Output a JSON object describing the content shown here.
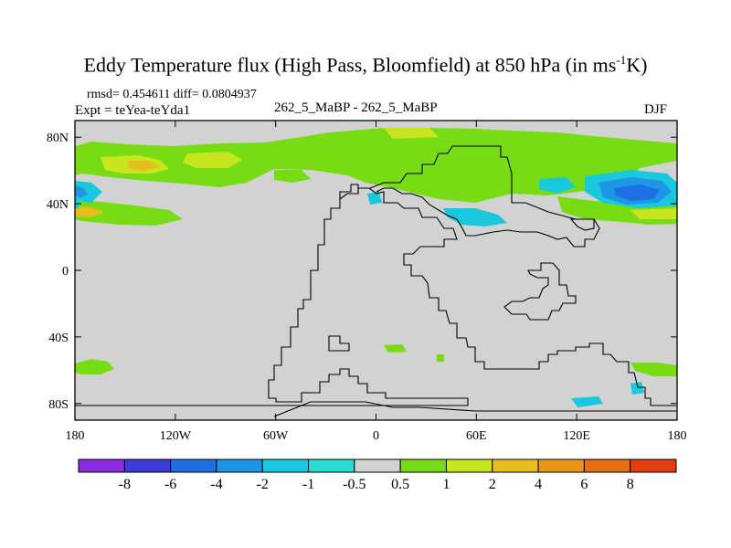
{
  "chart_data": {
    "type": "heatmap",
    "title_main": "Eddy Temperature flux (High Pass, Bloomfield) at 850 hPa (in ms",
    "title_sup": "-1",
    "title_end": "K)",
    "rmsd_line": "rmsd= 0.454611 diff= 0.0804937",
    "expt_line": "Expt = teYea-teYda1",
    "center_label": "262_5_MaBP - 262_5_MaBP",
    "season": "DJF",
    "x_range": [
      -180,
      180
    ],
    "y_range": [
      -90,
      90
    ],
    "x_ticks": [
      {
        "value": -180,
        "label": "180"
      },
      {
        "value": -120,
        "label": "120W"
      },
      {
        "value": -60,
        "label": "60W"
      },
      {
        "value": 0,
        "label": "0"
      },
      {
        "value": 60,
        "label": "60E"
      },
      {
        "value": 120,
        "label": "120E"
      },
      {
        "value": 180,
        "label": "180"
      }
    ],
    "y_ticks": [
      {
        "value": 80,
        "label": "80N"
      },
      {
        "value": 40,
        "label": "40N"
      },
      {
        "value": 0,
        "label": "0"
      },
      {
        "value": -40,
        "label": "40S"
      },
      {
        "value": -80,
        "label": "80S"
      }
    ],
    "colorbar": {
      "labels": [
        "-8",
        "-6",
        "-4",
        "-2",
        "-1",
        "-0.5",
        "0.5",
        "1",
        "2",
        "4",
        "6",
        "8"
      ],
      "colors": [
        "#8a2be2",
        "#3c3cd8",
        "#1e6ee6",
        "#1e96e6",
        "#19c8dc",
        "#28dcd2",
        "#d2d2d2",
        "#78dc14",
        "#c8e61e",
        "#e6be1e",
        "#e69614",
        "#e66e14",
        "#e63c14"
      ]
    },
    "features": [
      {
        "name": "nh-belt",
        "level": "1 to 2",
        "lon_range": [
          -180,
          180
        ],
        "lat_range": [
          30,
          78
        ]
      },
      {
        "name": "north-pacific-max",
        "level": "2 to 4",
        "lon": -125,
        "lat": 63
      },
      {
        "name": "north-pacific-max-2",
        "level": "2 to 4",
        "lon": -95,
        "lat": 65
      },
      {
        "name": "west-pacific-min",
        "level": "-2 to -4",
        "lon": 155,
        "lat": 45
      },
      {
        "name": "east-pacific-min",
        "level": "-1 to -2",
        "lon": -175,
        "lat": 47
      },
      {
        "name": "central-asia-min",
        "level": "-1 to -2",
        "lon": 55,
        "lat": 32
      },
      {
        "name": "sh-west-band",
        "level": "0.5 to 1",
        "lon": -170,
        "lat": -59
      },
      {
        "name": "sh-east-band",
        "level": "0.5 to 1",
        "lon": 160,
        "lat": -56
      },
      {
        "name": "sh-east-min",
        "level": "-1 to -2",
        "lon": 125,
        "lat": -78
      }
    ]
  },
  "colors": {
    "background": "#ffffff",
    "neutral_fill": "#d2d2d2",
    "coastline": "#000000"
  }
}
